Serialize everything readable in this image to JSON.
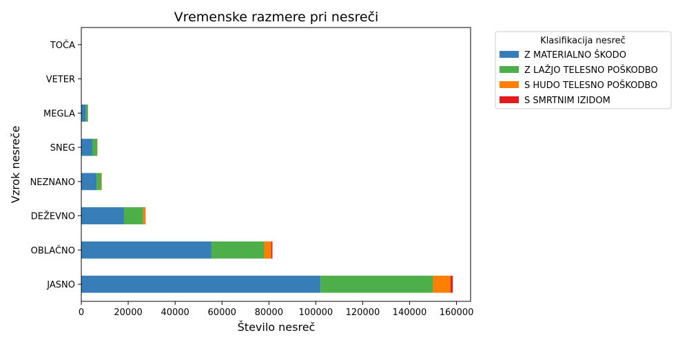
{
  "chart_data": {
    "type": "bar",
    "orientation": "horizontal",
    "stacked": true,
    "title": "Vremenske razmere pri nesreči",
    "xlabel": "Število nesreč",
    "ylabel": "Vzrok nesreče",
    "xlim": [
      0,
      166000
    ],
    "xticks": [
      0,
      20000,
      40000,
      60000,
      80000,
      100000,
      120000,
      140000,
      160000
    ],
    "grid": false,
    "legend_position": "outside-top-right",
    "legend_title": "Klasifikacija nesreč",
    "categories": [
      "JASNO",
      "OBLAČNO",
      "DEŽEVNO",
      "NEZNANO",
      "SNEG",
      "MEGLA",
      "VETER",
      "TOČA"
    ],
    "series": [
      {
        "name": "Z MATERIALNO ŠKODO",
        "color": "#377eb8",
        "values": [
          102000,
          55500,
          18200,
          6500,
          4700,
          2000,
          60,
          30
        ]
      },
      {
        "name": "Z LAŽJO TELESNO POŠKODBO",
        "color": "#4daf4a",
        "values": [
          48000,
          22500,
          8200,
          2000,
          2100,
          800,
          20,
          10
        ]
      },
      {
        "name": "S HUDO TELESNO POŠKODBO",
        "color": "#ff7f00",
        "values": [
          7500,
          3000,
          900,
          200,
          100,
          50,
          5,
          2
        ]
      },
      {
        "name": "S SMRTNIM IZIDOM",
        "color": "#e41a1c",
        "values": [
          900,
          500,
          100,
          30,
          10,
          10,
          0,
          0
        ]
      }
    ]
  }
}
